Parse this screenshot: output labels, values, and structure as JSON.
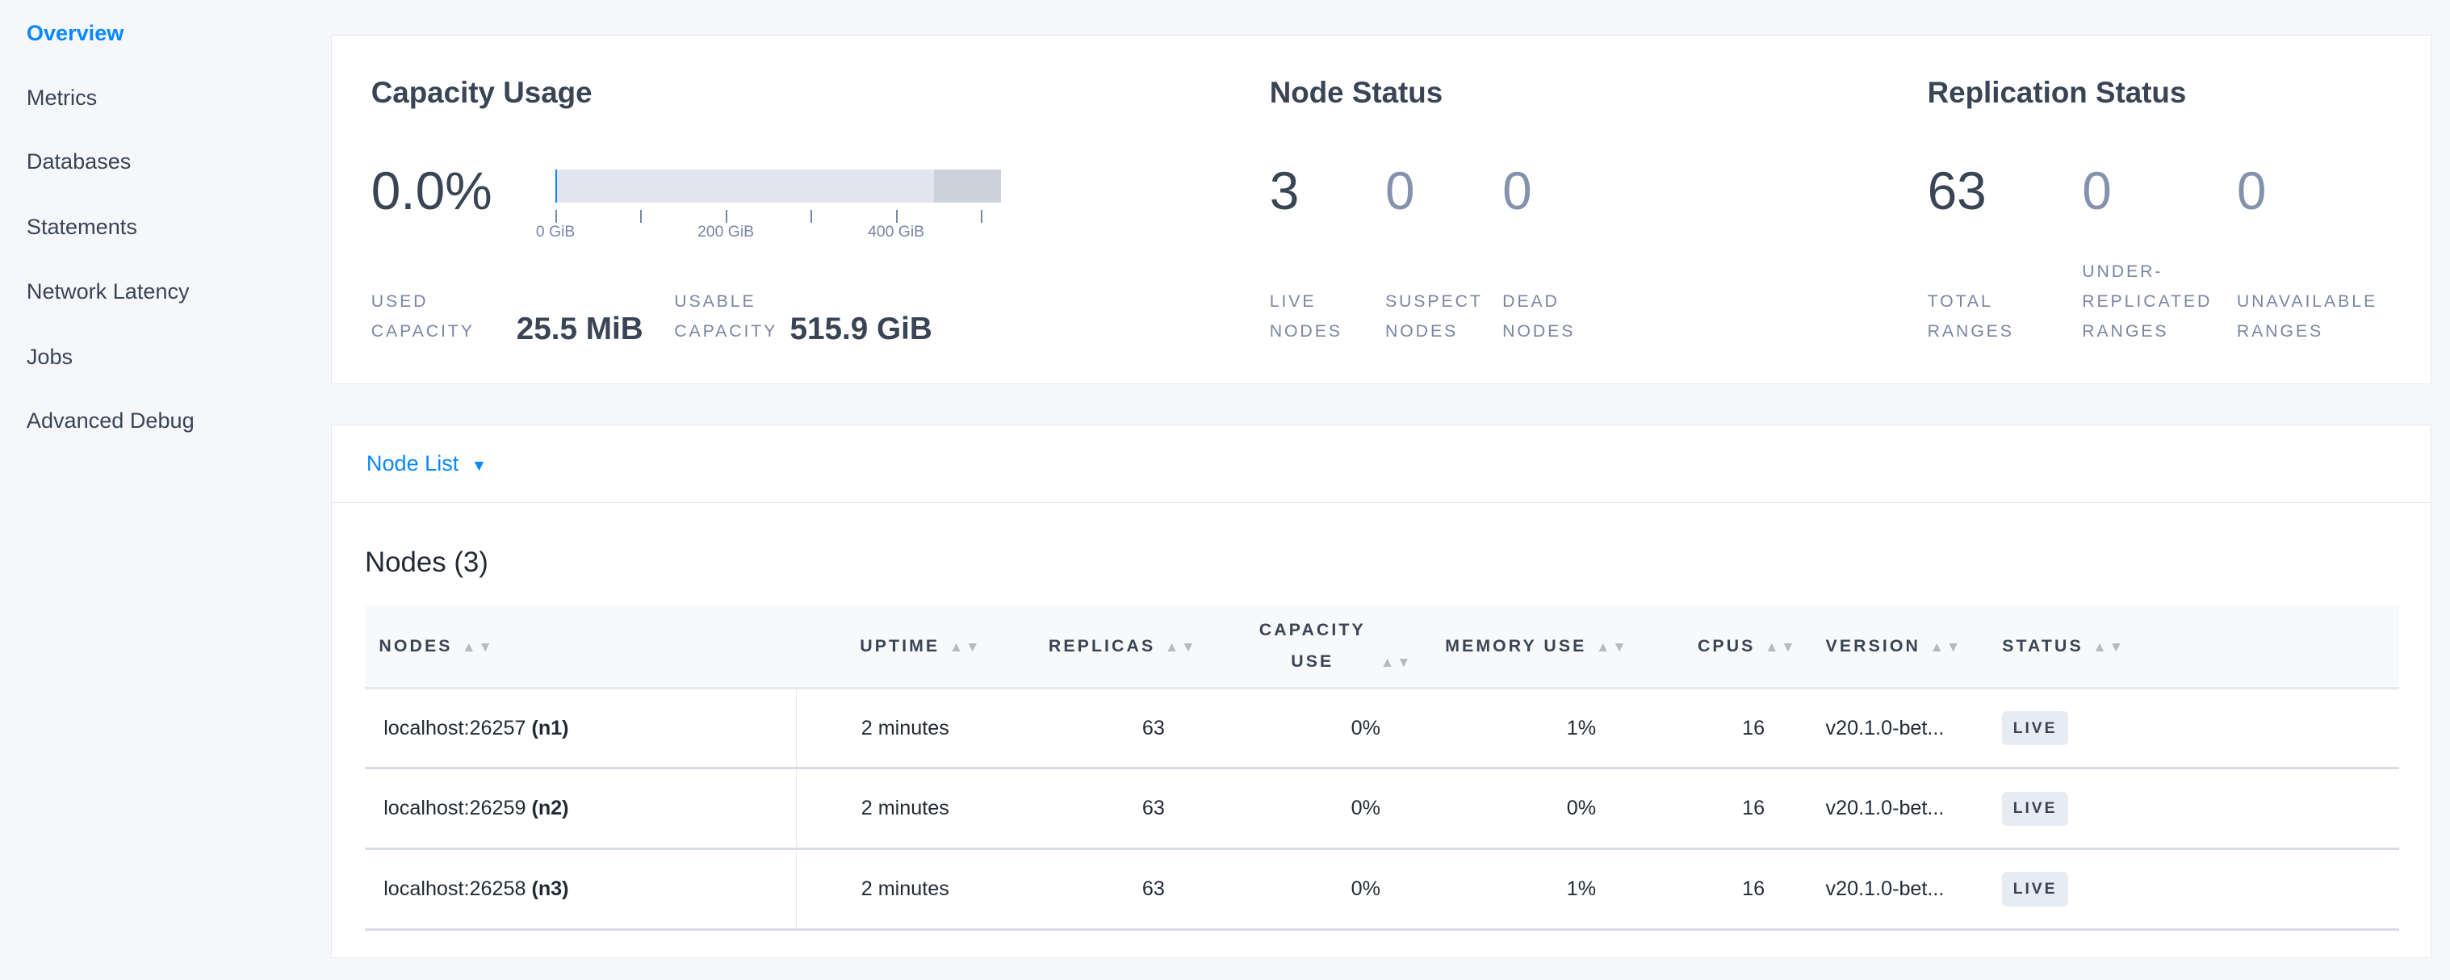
{
  "sidebar": {
    "items": [
      {
        "label": "Overview",
        "active": true
      },
      {
        "label": "Metrics"
      },
      {
        "label": "Databases"
      },
      {
        "label": "Statements"
      },
      {
        "label": "Network Latency"
      },
      {
        "label": "Jobs"
      },
      {
        "label": "Advanced Debug"
      }
    ]
  },
  "capacity": {
    "title": "Capacity Usage",
    "percent": "0.0%",
    "used_fraction": 0.0,
    "ticks": [
      "0 GiB",
      "200 GiB",
      "400 GiB"
    ],
    "used_label": "Used Capacity",
    "used_value": "25.5 MiB",
    "usable_label": "Usable Capacity",
    "usable_value": "515.9 GiB"
  },
  "node_status": {
    "title": "Node Status",
    "live": "3",
    "live_label": "Live Nodes",
    "suspect": "0",
    "suspect_label": "Suspect Nodes",
    "dead": "0",
    "dead_label": "Dead Nodes"
  },
  "replication": {
    "title": "Replication Status",
    "total": "63",
    "total_label": "Total Ranges",
    "under": "0",
    "under_label": "Under-replicated Ranges",
    "unavail": "0",
    "unavail_label": "Unavailable Ranges"
  },
  "node_list": {
    "dropdown": "Node List",
    "title": "Nodes (3)",
    "columns": [
      "Nodes",
      "Uptime",
      "Replicas",
      "Capacity Use",
      "Memory Use",
      "CPUs",
      "Version",
      "Status"
    ],
    "rows": [
      {
        "addr": "localhost:26257",
        "id": "(n1)",
        "uptime": "2 minutes",
        "replicas": "63",
        "capacity": "0%",
        "memory": "1%",
        "cpus": "16",
        "version": "v20.1.0-bet...",
        "status": "LIVE"
      },
      {
        "addr": "localhost:26259",
        "id": "(n2)",
        "uptime": "2 minutes",
        "replicas": "63",
        "capacity": "0%",
        "memory": "0%",
        "cpus": "16",
        "version": "v20.1.0-bet...",
        "status": "LIVE"
      },
      {
        "addr": "localhost:26258",
        "id": "(n3)",
        "uptime": "2 minutes",
        "replicas": "63",
        "capacity": "0%",
        "memory": "1%",
        "cpus": "16",
        "version": "v20.1.0-bet...",
        "status": "LIVE"
      }
    ]
  }
}
